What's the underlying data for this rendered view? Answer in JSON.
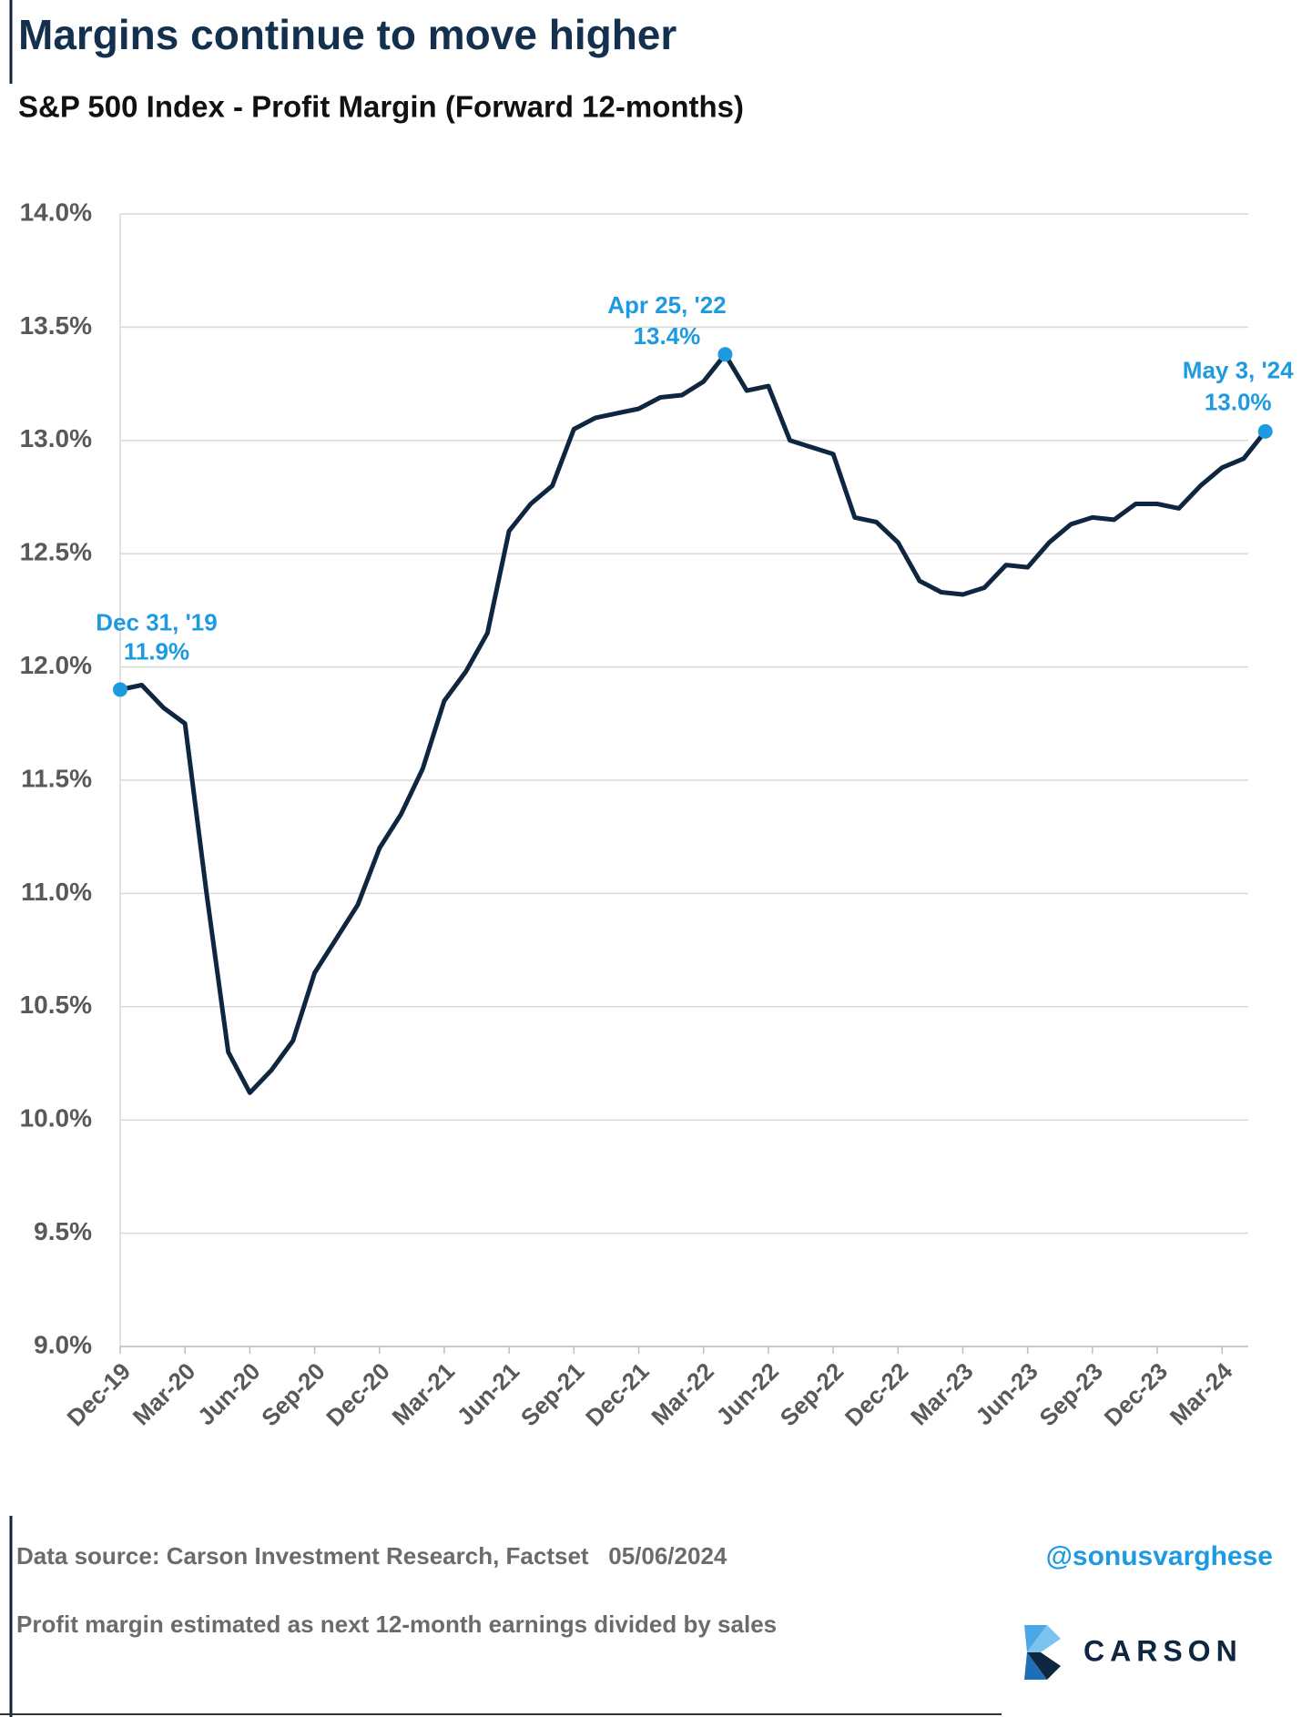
{
  "chart_data": {
    "type": "line",
    "title": "Margins continue to move higher",
    "subtitle": "S&P 500 Index - Profit Margin (Forward 12-months)",
    "x": [
      "Dec-19",
      "Jan-20",
      "Feb-20",
      "Mar-20",
      "Apr-20",
      "May-20",
      "Jun-20",
      "Jul-20",
      "Aug-20",
      "Sep-20",
      "Oct-20",
      "Nov-20",
      "Dec-20",
      "Jan-21",
      "Feb-21",
      "Mar-21",
      "Apr-21",
      "May-21",
      "Jun-21",
      "Jul-21",
      "Aug-21",
      "Sep-21",
      "Oct-21",
      "Nov-21",
      "Dec-21",
      "Jan-22",
      "Feb-22",
      "Mar-22",
      "Apr-22",
      "May-22",
      "Jun-22",
      "Jul-22",
      "Aug-22",
      "Sep-22",
      "Oct-22",
      "Nov-22",
      "Dec-22",
      "Jan-23",
      "Feb-23",
      "Mar-23",
      "Apr-23",
      "May-23",
      "Jun-23",
      "Jul-23",
      "Aug-23",
      "Sep-23",
      "Oct-23",
      "Nov-23",
      "Dec-23",
      "Jan-24",
      "Feb-24",
      "Mar-24",
      "Apr-24",
      "May-24"
    ],
    "values": [
      11.9,
      11.92,
      11.82,
      11.75,
      11.0,
      10.3,
      10.12,
      10.22,
      10.35,
      10.65,
      10.8,
      10.95,
      11.2,
      11.35,
      11.55,
      11.85,
      11.98,
      12.15,
      12.6,
      12.72,
      12.8,
      13.05,
      13.1,
      13.12,
      13.14,
      13.19,
      13.2,
      13.26,
      13.38,
      13.22,
      13.24,
      13.0,
      12.97,
      12.94,
      12.66,
      12.64,
      12.55,
      12.38,
      12.33,
      12.32,
      12.35,
      12.45,
      12.44,
      12.55,
      12.63,
      12.66,
      12.65,
      12.72,
      12.72,
      12.7,
      12.8,
      12.88,
      12.92,
      13.04
    ],
    "color": "#0f2640",
    "ylim": [
      9,
      14
    ],
    "yticks": [
      {
        "value": 9,
        "label": "9.0%"
      },
      {
        "value": 9.5,
        "label": "9.5%"
      },
      {
        "value": 10,
        "label": "10.0%"
      },
      {
        "value": 10.5,
        "label": "10.5%"
      },
      {
        "value": 11,
        "label": "11.0%"
      },
      {
        "value": 11.5,
        "label": "11.5%"
      },
      {
        "value": 12,
        "label": "12.0%"
      },
      {
        "value": 12.5,
        "label": "12.5%"
      },
      {
        "value": 13,
        "label": "13.0%"
      },
      {
        "value": 13.5,
        "label": "13.5%"
      },
      {
        "value": 14,
        "label": "14.0%"
      }
    ],
    "xticks": [
      "Dec-19",
      "Mar-20",
      "Jun-20",
      "Sep-20",
      "Dec-20",
      "Mar-21",
      "Jun-21",
      "Sep-21",
      "Dec-21",
      "Mar-22",
      "Jun-22",
      "Sep-22",
      "Dec-22",
      "Mar-23",
      "Jun-23",
      "Sep-23",
      "Dec-23",
      "Mar-24"
    ],
    "grid": true,
    "annotations": [
      {
        "x": "Dec-19",
        "label": "Dec 31, '19",
        "value": 11.9,
        "value_label": "11.9%",
        "color": "#1e9be0"
      },
      {
        "x": "Apr-22",
        "label": "Apr 25, '22",
        "value": 13.38,
        "value_label": "13.4%",
        "color": "#1e9be0"
      },
      {
        "x": "May-24",
        "label": "May 3, '24",
        "value": 13.04,
        "value_label": "13.0%",
        "color": "#1e9be0"
      }
    ],
    "source": "Data source: Carson Investment Research, Factset   05/06/2024",
    "handle": "@sonusvarghese",
    "note": "Profit margin estimated as next 12-month earnings divided by sales",
    "logo": "CARSON"
  }
}
